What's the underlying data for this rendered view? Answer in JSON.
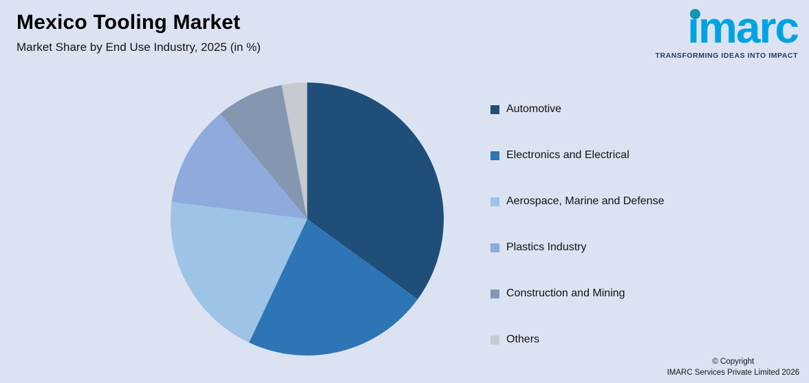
{
  "header": {
    "title": "Mexico Tooling Market",
    "subtitle": "Market Share by End Use Industry, 2025 (in %)"
  },
  "logo": {
    "brand": "imarc",
    "tagline": "TRANSFORMING IDEAS INTO IMPACT",
    "brand_color": "#00a3e2",
    "dot_color": "#1096b5",
    "tagline_color": "#243a5e"
  },
  "chart_data": {
    "type": "pie",
    "title": "Mexico Tooling Market",
    "subtitle": "Market Share by End Use Industry, 2025 (in %)",
    "labels": [
      "Automotive",
      "Electronics and Electrical",
      "Aerospace, Marine and Defense",
      "Plastics Industry",
      "Construction and Mining",
      "Others"
    ],
    "values": [
      35,
      22,
      20,
      12,
      8,
      3
    ],
    "colors": [
      "#1f4e79",
      "#2e75b6",
      "#9dc3e6",
      "#8faadc",
      "#8496b0",
      "#c6cad1"
    ],
    "start_angle_deg": 0,
    "direction": "clockwise",
    "legend_position": "right",
    "background_color": "#dbe3f2"
  },
  "footer": {
    "copyright_line1": "© Copyright",
    "copyright_line2": "IMARC Services Private Limited 2026"
  }
}
